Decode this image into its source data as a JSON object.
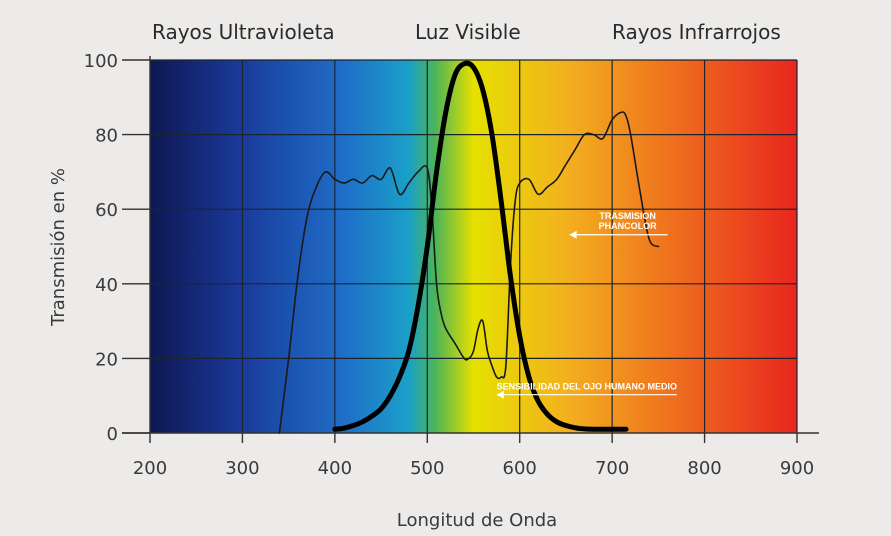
{
  "chart_data": {
    "type": "line",
    "title": "",
    "region_labels": [
      "Rayos Ultravioleta",
      "Luz Visible",
      "Rayos Infrarrojos"
    ],
    "xlabel": "Longitud de Onda",
    "ylabel": "Transmisión en %",
    "xlim": [
      200,
      900
    ],
    "ylim": [
      0,
      100
    ],
    "xticks": [
      200,
      300,
      400,
      500,
      600,
      700,
      800,
      900
    ],
    "yticks": [
      0,
      20,
      40,
      60,
      80,
      100
    ],
    "grid": true,
    "background_spectrum_colors": [
      "#0e1752",
      "#1a3a9a",
      "#1f6ec8",
      "#1aa0c8",
      "#4ab45a",
      "#e6e000",
      "#f2b21e",
      "#f07a1e",
      "#e8261e"
    ],
    "series": [
      {
        "color": "#1a1a1a",
        "x": [
          340,
          350,
          360,
          370,
          380,
          390,
          400,
          410,
          420,
          430,
          440,
          450,
          460,
          470,
          480,
          490,
          500,
          505,
          510,
          515,
          520,
          530,
          540,
          545,
          550,
          555,
          560,
          565,
          570,
          575,
          580,
          585,
          590,
          595,
          600,
          610,
          620,
          630,
          640,
          650,
          660,
          670,
          680,
          690,
          700,
          710,
          715,
          720,
          730,
          740,
          750
        ],
        "y": [
          0,
          20,
          42,
          58,
          66,
          70,
          68,
          67,
          68,
          67,
          69,
          68,
          71,
          64,
          67,
          70,
          71,
          60,
          40,
          32,
          28,
          24,
          20,
          20,
          22,
          28,
          30,
          22,
          18,
          15,
          15,
          18,
          45,
          62,
          67,
          68,
          64,
          66,
          68,
          72,
          76,
          80,
          80,
          79,
          84,
          86,
          85,
          80,
          65,
          52,
          50
        ]
      },
      {
        "color": "#000000",
        "x": [
          400,
          410,
          420,
          430,
          440,
          450,
          460,
          470,
          480,
          490,
          500,
          510,
          520,
          530,
          540,
          550,
          560,
          570,
          580,
          590,
          600,
          610,
          620,
          630,
          640,
          650,
          660,
          670,
          680,
          690,
          700,
          710,
          715
        ],
        "y": [
          1,
          1.3,
          2,
          3,
          4.5,
          6.5,
          10,
          15,
          22,
          34,
          50,
          70,
          86,
          96,
          99,
          98,
          92,
          80,
          62,
          42,
          26,
          15,
          8.5,
          5,
          3,
          2,
          1.4,
          1.1,
          1,
          1,
          1,
          1,
          1
        ]
      }
    ],
    "annotations": [
      {
        "text": "TRASMISION PHANCOLOR",
        "lines": [
          "TRASMISION",
          "PHANCOLOR"
        ],
        "x": 760,
        "y": 51
      },
      {
        "text": "SENSIBILIDAD DEL OJO HUMANO MEDIO",
        "lines": [
          "SENSIBILIDAD DEL OJO HUMANO MEDIO"
        ],
        "x": 770,
        "y": 10
      }
    ]
  }
}
